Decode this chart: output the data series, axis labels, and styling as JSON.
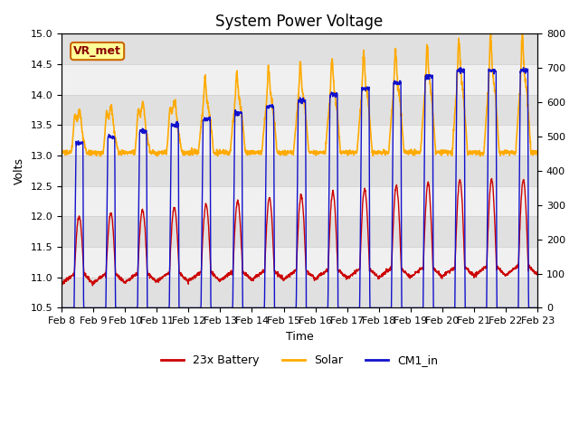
{
  "title": "System Power Voltage",
  "xlabel": "Time",
  "ylabel": "Volts",
  "ylim_left": [
    10.5,
    15.0
  ],
  "ylim_right": [
    0,
    800
  ],
  "yticks_left": [
    10.5,
    11.0,
    11.5,
    12.0,
    12.5,
    13.0,
    13.5,
    14.0,
    14.5,
    15.0
  ],
  "yticks_right": [
    0,
    100,
    200,
    300,
    400,
    500,
    600,
    700,
    800
  ],
  "xticklabels": [
    "Feb 8",
    "Feb 9",
    "Feb 10",
    "Feb 11",
    "Feb 12",
    "Feb 13",
    "Feb 14",
    "Feb 15",
    "Feb 16",
    "Feb 17",
    "Feb 18",
    "Feb 19",
    "Feb 20",
    "Feb 21",
    "Feb 22",
    "Feb 23"
  ],
  "colors": {
    "battery": "#cc0000",
    "solar": "#ffaa00",
    "cm1": "#1111cc",
    "bg_dark": "#e0e0e0",
    "bg_light": "#f0f0f0"
  },
  "annotation": "VR_met",
  "annotation_fg": "#8b0000",
  "annotation_bg": "#ffff99",
  "annotation_edge": "#cc6600",
  "legend_labels": [
    "23x Battery",
    "Solar",
    "CM1_in"
  ],
  "title_fontsize": 12,
  "label_fontsize": 9,
  "tick_fontsize": 8
}
